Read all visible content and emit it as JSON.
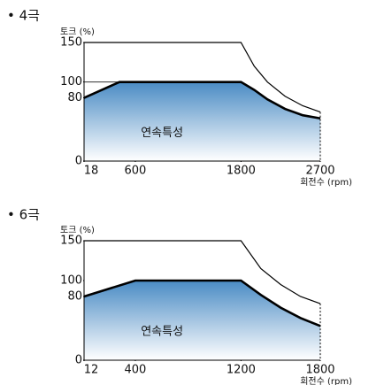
{
  "chart_data": [
    {
      "type": "line",
      "title": "• 4극",
      "ylabel": "토크 (%)",
      "xlabel": "회전수 (rpm)",
      "xlim": [
        18,
        2700
      ],
      "xticks": [
        18,
        600,
        1800,
        2700
      ],
      "ylim": [
        0,
        150
      ],
      "yticks": [
        0,
        80,
        100,
        150
      ],
      "reference_line": 100,
      "series": [
        {
          "color": "#000000",
          "x": [
            18,
            1800,
            1950,
            2100,
            2300,
            2500,
            2700
          ],
          "values": [
            150,
            150,
            120,
            100,
            82,
            70,
            62
          ]
        },
        {
          "name": "연속특성",
          "color": "#4a8bc4",
          "x": [
            18,
            420,
            1800,
            1950,
            2100,
            2300,
            2500,
            2700
          ],
          "values": [
            80,
            100,
            100,
            90,
            78,
            66,
            58,
            54
          ]
        }
      ]
    },
    {
      "type": "line",
      "title": "• 6극",
      "ylabel": "토크 (%)",
      "xlabel": "회전수 (rpm)",
      "xlim": [
        12,
        1800
      ],
      "xticks": [
        12,
        400,
        1200,
        1800
      ],
      "ylim": [
        0,
        150
      ],
      "yticks": [
        0,
        80,
        100,
        150
      ],
      "series": [
        {
          "color": "#000000",
          "x": [
            12,
            1200,
            1350,
            1500,
            1650,
            1800
          ],
          "values": [
            150,
            150,
            115,
            95,
            80,
            71
          ]
        },
        {
          "name": "연속특성",
          "color": "#4a8bc4",
          "x": [
            12,
            400,
            1200,
            1350,
            1500,
            1650,
            1800
          ],
          "values": [
            80,
            100,
            100,
            82,
            66,
            53,
            43
          ]
        }
      ]
    }
  ]
}
